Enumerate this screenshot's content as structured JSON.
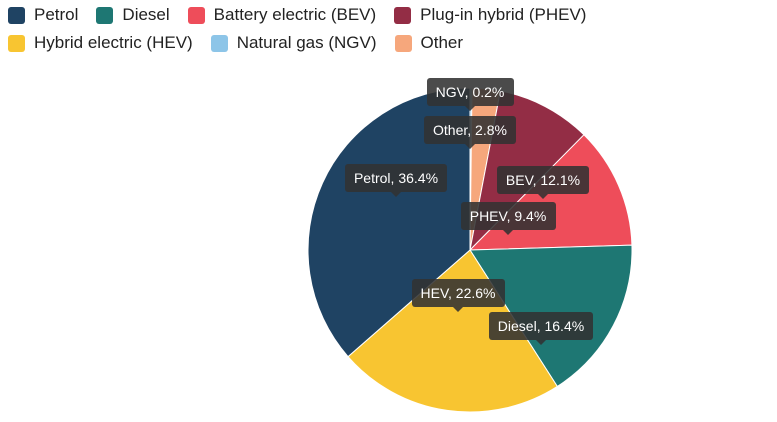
{
  "chart_data": {
    "type": "pie",
    "legend_position": "top-left",
    "series": [
      {
        "name": "Petrol",
        "short": "Petrol",
        "value": 36.4,
        "color": "#1f4363"
      },
      {
        "name": "Diesel",
        "short": "Diesel",
        "value": 16.4,
        "color": "#1e7773"
      },
      {
        "name": "Battery electric (BEV)",
        "short": "BEV",
        "value": 12.1,
        "color": "#ee4d5a"
      },
      {
        "name": "Plug-in hybrid (PHEV)",
        "short": "PHEV",
        "value": 9.4,
        "color": "#932d45"
      },
      {
        "name": "Hybrid electric (HEV)",
        "short": "HEV",
        "value": 22.6,
        "color": "#f8c531"
      },
      {
        "name": "Natural gas (NGV)",
        "short": "NGV",
        "value": 0.2,
        "color": "#8dc5e8"
      },
      {
        "name": "Other",
        "short": "Other",
        "value": 2.8,
        "color": "#f6a77c"
      }
    ],
    "slice_order": [
      "NGV",
      "Other",
      "PHEV",
      "BEV",
      "Diesel",
      "HEV",
      "Petrol"
    ]
  }
}
